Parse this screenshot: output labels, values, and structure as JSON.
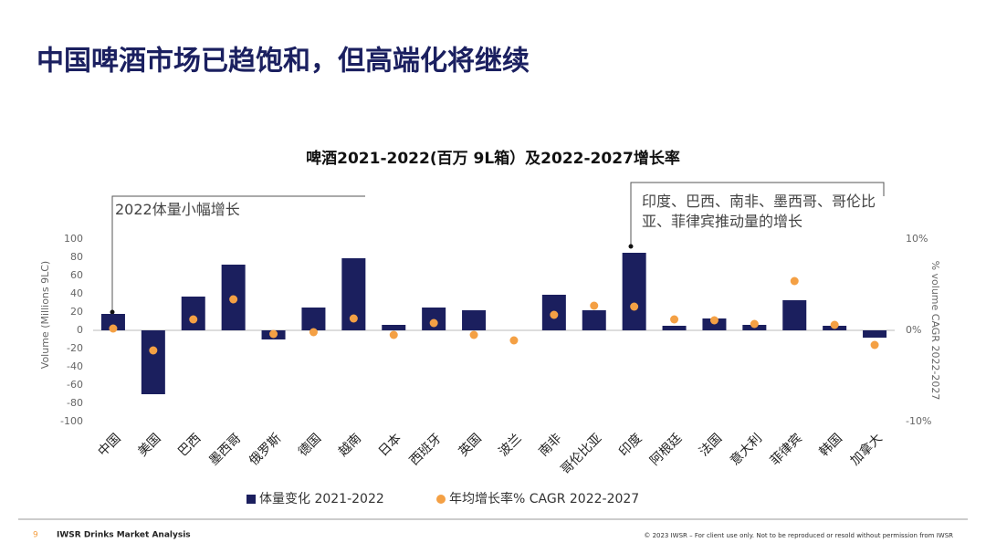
{
  "header": {
    "title": "中国啤酒市场已趋饱和，但高端化将继续"
  },
  "chart_data": {
    "type": "bar",
    "title": "啤酒2021-2022(百万 9L箱）及2022-2027增长率",
    "annotations": [
      "2022体量小幅增长",
      "印度、巴西、南非、墨西哥、哥伦比亚、菲律宾推动量的增长"
    ],
    "y_label": "Volume (Millions 9LC)",
    "y2_label": "% volume CAGR 2022-2027",
    "categories": [
      "中国",
      "美国",
      "巴西",
      "墨西哥",
      "俄罗斯",
      "德国",
      "越南",
      "日本",
      "西班牙",
      "英国",
      "波兰",
      "南非",
      "哥伦比亚",
      "印度",
      "阿根廷",
      "法国",
      "意大利",
      "菲律宾",
      "韩国",
      "加拿大"
    ],
    "series": [
      {
        "name": "体量变化 2021-2022",
        "type": "bar",
        "color": "#1b1f5e",
        "values": [
          18,
          -70,
          37,
          72,
          -10,
          25,
          79,
          6,
          25,
          22,
          0,
          39,
          22,
          85,
          5,
          13,
          6,
          33,
          5,
          -8
        ]
      },
      {
        "name": "年均增长率% CAGR 2022-2027",
        "type": "scatter",
        "axis": "y2",
        "color": "#f4a044",
        "values": [
          0.2,
          -2.2,
          1.2,
          3.4,
          -0.4,
          -0.2,
          1.3,
          -0.5,
          0.8,
          -0.5,
          -1.1,
          1.7,
          2.7,
          2.6,
          1.2,
          1.1,
          0.7,
          5.4,
          0.6,
          -1.6
        ]
      }
    ],
    "ylim": [
      -100,
      100
    ],
    "yticks": [
      -100,
      -80,
      -60,
      -40,
      -20,
      0,
      20,
      40,
      60,
      80,
      100
    ],
    "y2lim": [
      -10,
      10
    ],
    "y2ticks": [
      {
        "value": -10,
        "label": "-10%"
      },
      {
        "value": 0,
        "label": "0%"
      },
      {
        "value": 10,
        "label": "10%"
      }
    ]
  },
  "footer": {
    "page": "9",
    "brand": "IWSR Drinks Market Analysis",
    "copyright": "© 2023 IWSR – For client use only. Not to be reproduced or resold without permission from IWSR"
  }
}
